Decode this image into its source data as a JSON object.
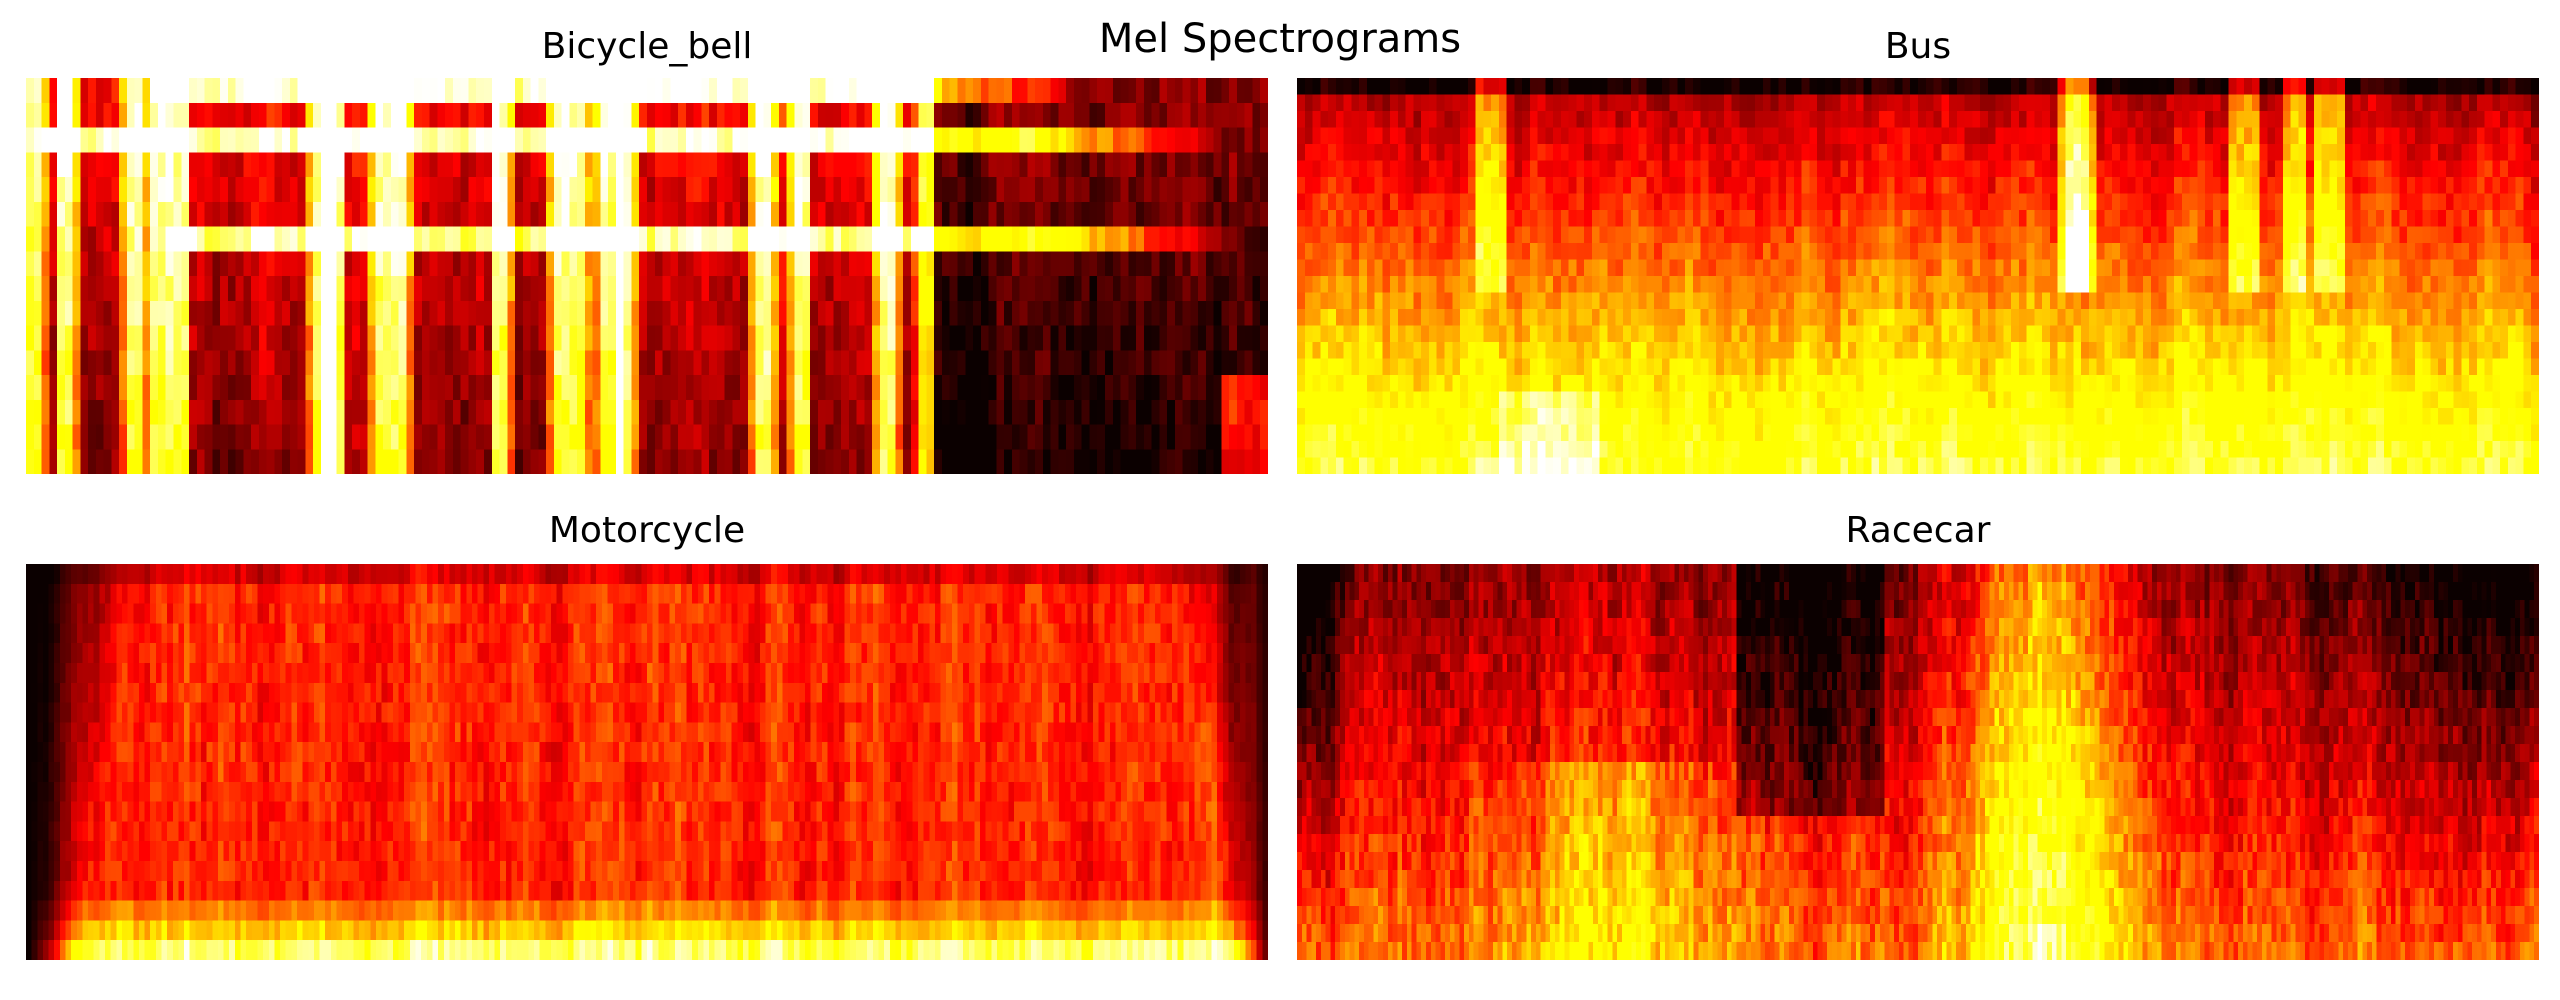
{
  "suptitle": "Mel Spectrograms",
  "colormap": {
    "name": "hot",
    "stops": [
      "#0b0000",
      "#ff0000",
      "#ffff00",
      "#ffffff"
    ]
  },
  "chart_data": [
    {
      "type": "heatmap",
      "title": "Bicycle_bell",
      "axes_visible": false,
      "n_time_frames": 160,
      "n_mel_bands": 16,
      "value_range": [
        0,
        1
      ],
      "features": {
        "vertical_bands": [
          0.005,
          0.03,
          0.085,
          0.105,
          0.12,
          0.235,
          0.245,
          0.285,
          0.3,
          0.38,
          0.425,
          0.44,
          0.465,
          0.48,
          0.59,
          0.62,
          0.69,
          0.72
        ],
        "harmonic_bands": [
          {
            "band": 15,
            "start": 0.11,
            "end": 0.85
          },
          {
            "band": 13,
            "start": 0.01,
            "end": 0.96
          },
          {
            "band": 9,
            "start": 0.11,
            "end": 0.985
          }
        ]
      }
    },
    {
      "type": "heatmap",
      "title": "Bus",
      "axes_visible": false,
      "n_time_frames": 160,
      "n_mel_bands": 24,
      "value_range": [
        0,
        1
      ],
      "features": {
        "vertical_bands": [
          0.155,
          0.62,
          0.63,
          0.76,
          0.8,
          0.83
        ],
        "low_band_energy": "high"
      }
    },
    {
      "type": "heatmap",
      "title": "Motorcycle",
      "axes_visible": false,
      "n_time_frames": 220,
      "n_mel_bands": 20,
      "value_range": [
        0,
        1
      ],
      "features": {
        "fade_in_end": 0.1,
        "fade_out_start": 0.93,
        "bright_low_band": true
      }
    },
    {
      "type": "heatmap",
      "title": "Racecar",
      "axes_visible": false,
      "n_time_frames": 260,
      "n_mel_bands": 22,
      "value_range": [
        0,
        1
      ],
      "features": {
        "bright_center": 0.6,
        "secondary_center": 0.26,
        "dark_region": [
          0.35,
          0.47
        ]
      }
    }
  ]
}
